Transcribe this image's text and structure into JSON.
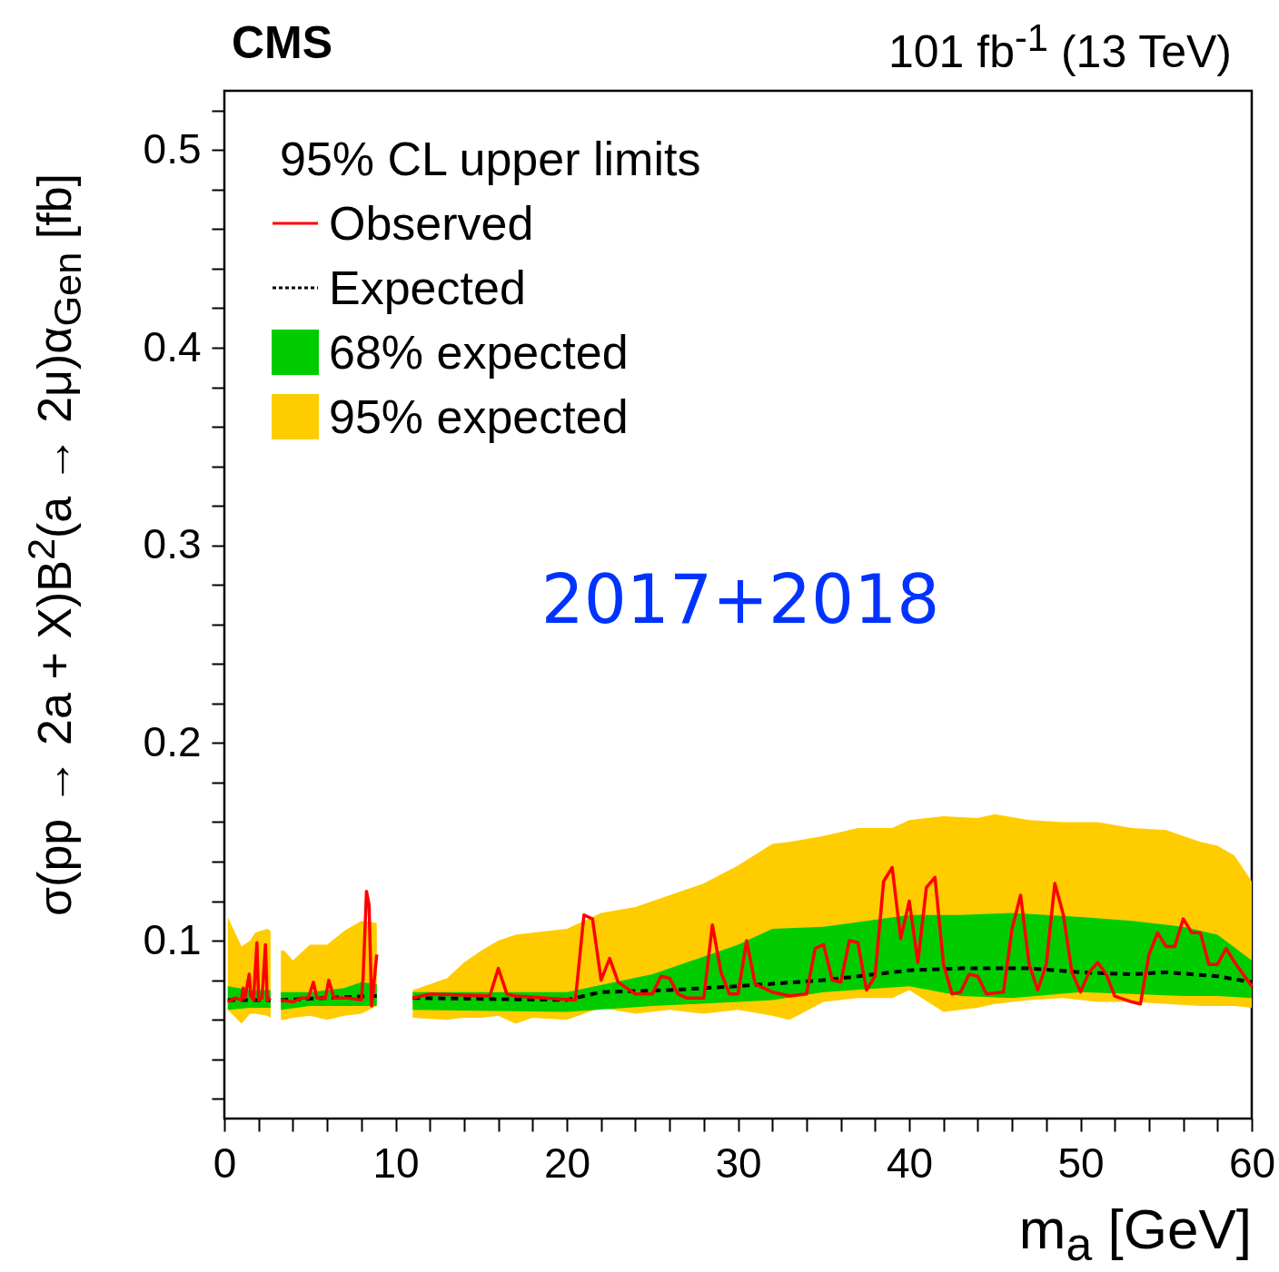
{
  "chart_data": {
    "type": "line",
    "title": "CMS",
    "subtitle": "101 fb$^{-1}$ (13 TeV)",
    "xlabel": "m$_{a}$ [GeV]",
    "ylabel": "σ(pp → 2a + X)B$^{2}$(a → 2μ)α$_{Gen}$ [fb]",
    "legend_title": "95% CL upper limits",
    "legend": "top left",
    "annotations": [
      "2017+2018"
    ],
    "xlim": [
      0,
      60
    ],
    "ylim": [
      0.01,
      0.53
    ],
    "xticks": [
      0,
      {
        "value": 2,
        "label": null
      },
      {
        "value": 4,
        "label": null
      },
      {
        "value": 6,
        "label": null
      },
      {
        "value": 8,
        "label": null
      },
      10,
      {
        "value": 12,
        "label": null
      },
      {
        "value": 14,
        "label": null
      },
      {
        "value": 16,
        "label": null
      },
      {
        "value": 18,
        "label": null
      },
      20,
      {
        "value": 22,
        "label": null
      },
      {
        "value": 24,
        "label": null
      },
      {
        "value": 26,
        "label": null
      },
      {
        "value": 28,
        "label": null
      },
      30,
      {
        "value": 32,
        "label": null
      },
      {
        "value": 34,
        "label": null
      },
      {
        "value": 36,
        "label": null
      },
      {
        "value": 38,
        "label": null
      },
      40,
      {
        "value": 42,
        "label": null
      },
      {
        "value": 44,
        "label": null
      },
      {
        "value": 46,
        "label": null
      },
      {
        "value": 48,
        "label": null
      },
      50,
      {
        "value": 52,
        "label": null
      },
      {
        "value": 54,
        "label": null
      },
      {
        "value": 56,
        "label": null
      },
      {
        "value": 58,
        "label": null
      },
      60
    ],
    "yticks": [
      {
        "value": 0.02,
        "label": null
      },
      {
        "value": 0.04,
        "label": null
      },
      {
        "value": 0.06,
        "label": null
      },
      {
        "value": 0.08,
        "label": null
      },
      0.1,
      {
        "value": 0.12,
        "label": null
      },
      {
        "value": 0.14,
        "label": null
      },
      {
        "value": 0.16,
        "label": null
      },
      {
        "value": 0.18,
        "label": null
      },
      0.2,
      {
        "value": 0.22,
        "label": null
      },
      {
        "value": 0.24,
        "label": null
      },
      {
        "value": 0.26,
        "label": null
      },
      {
        "value": 0.28,
        "label": null
      },
      0.3,
      {
        "value": 0.32,
        "label": null
      },
      {
        "value": 0.34,
        "label": null
      },
      {
        "value": 0.36,
        "label": null
      },
      {
        "value": 0.38,
        "label": null
      },
      0.4,
      {
        "value": 0.42,
        "label": null
      },
      {
        "value": 0.44,
        "label": null
      },
      {
        "value": 0.46,
        "label": null
      },
      {
        "value": 0.48,
        "label": null
      },
      0.5,
      {
        "value": 0.52,
        "label": null
      }
    ],
    "grid": false,
    "series": [
      {
        "name": "95% expected",
        "type": "area",
        "color": "#ffcc00",
        "x": [
          0.2,
          1.0,
          1.5,
          1.8,
          2.5,
          2.7,
          3.0,
          3.3,
          3.5,
          4,
          5,
          6,
          7,
          8,
          8.9,
          10,
          11,
          13,
          14,
          15,
          16,
          17,
          18,
          20,
          22,
          24,
          26,
          28,
          30,
          32,
          33,
          35,
          37,
          39,
          40,
          42,
          44,
          45,
          47,
          49,
          51,
          53,
          55,
          57,
          58,
          59,
          60
        ],
        "lower": [
          0.065,
          0.058,
          0.063,
          0.063,
          0.062,
          0.061,
          null,
          0.06,
          0.06,
          0.061,
          0.062,
          0.06,
          0.062,
          0.063,
          0.067,
          null,
          0.061,
          0.06,
          0.061,
          0.061,
          0.062,
          0.058,
          0.061,
          0.06,
          0.066,
          0.063,
          0.065,
          0.063,
          0.065,
          0.062,
          0.06,
          0.069,
          0.071,
          0.071,
          0.075,
          0.064,
          0.066,
          0.068,
          0.07,
          0.071,
          0.069,
          0.069,
          0.068,
          0.067,
          0.067,
          0.067,
          0.066
        ],
        "values": [
          null,
          null,
          null,
          null,
          null,
          null,
          null,
          null,
          null,
          null,
          null,
          null,
          null,
          null,
          null,
          null,
          null,
          null,
          null,
          null,
          null,
          null,
          null,
          null,
          null,
          null,
          null,
          null,
          null,
          null,
          null,
          null,
          null,
          null,
          null,
          null,
          null,
          null,
          null,
          null,
          null,
          null,
          null,
          null,
          null,
          null,
          null
        ],
        "upper": [
          0.112,
          0.097,
          0.1,
          0.104,
          0.106,
          0.105,
          null,
          0.095,
          0.095,
          0.09,
          0.098,
          0.098,
          0.105,
          0.11,
          0.109,
          null,
          0.075,
          0.081,
          0.089,
          0.095,
          0.1,
          0.103,
          0.104,
          0.106,
          0.114,
          0.117,
          0.123,
          0.129,
          0.138,
          0.149,
          0.15,
          0.153,
          0.157,
          0.157,
          0.161,
          0.163,
          0.162,
          0.164,
          0.161,
          0.16,
          0.16,
          0.157,
          0.156,
          0.15,
          0.148,
          0.143,
          0.13
        ]
      },
      {
        "name": "68% expected",
        "type": "area",
        "color": "#00cc00",
        "x": [
          0.2,
          1.5,
          2.7,
          3.0,
          3.3,
          5,
          6,
          7,
          8,
          8.9,
          10,
          11,
          20,
          25,
          30,
          32,
          35,
          40,
          43,
          46,
          50,
          53,
          56,
          58,
          60
        ],
        "lower": [
          0.065,
          0.066,
          0.066,
          null,
          0.065,
          0.067,
          0.067,
          0.067,
          0.067,
          0.067,
          null,
          0.065,
          0.064,
          0.067,
          0.069,
          0.07,
          0.074,
          0.077,
          0.072,
          0.071,
          0.074,
          0.073,
          0.072,
          0.072,
          0.071
        ],
        "values": [
          null,
          null,
          null,
          null,
          null,
          null,
          null,
          null,
          null,
          null,
          null,
          null,
          null,
          null,
          null,
          null,
          null,
          null,
          null,
          null,
          null,
          null,
          null,
          null,
          null
        ],
        "upper": [
          0.077,
          0.075,
          0.075,
          null,
          0.074,
          0.074,
          0.075,
          0.076,
          0.079,
          0.078,
          null,
          0.074,
          0.074,
          0.083,
          0.098,
          0.106,
          0.107,
          0.113,
          0.113,
          0.114,
          0.112,
          0.11,
          0.107,
          0.103,
          0.09
        ]
      },
      {
        "name": "Expected",
        "type": "line",
        "color": "#000000",
        "line_style": "dashed",
        "x": [
          0.2,
          2.7,
          3.0,
          3.3,
          6,
          8.5,
          8.9,
          10,
          11,
          20,
          22,
          26,
          30,
          35,
          40,
          43,
          47,
          50,
          53,
          55,
          58,
          60
        ],
        "values": [
          0.07,
          0.07,
          null,
          0.07,
          0.071,
          0.072,
          0.072,
          null,
          0.071,
          0.07,
          0.074,
          0.075,
          0.077,
          0.08,
          0.085,
          0.086,
          0.086,
          0.084,
          0.083,
          0.084,
          0.082,
          0.079
        ]
      },
      {
        "name": "Observed",
        "type": "line",
        "color": "#ff0000",
        "line_style": "solid",
        "x": [
          0.2,
          0.6,
          1.0,
          1.1,
          1.2,
          1.45,
          1.55,
          1.7,
          1.9,
          2.0,
          2.2,
          2.4,
          2.5,
          2.7,
          3.0,
          3.3,
          4,
          4.5,
          4.9,
          5.2,
          5.4,
          5.9,
          6.1,
          6.4,
          7.2,
          8,
          8.1,
          8.3,
          8.45,
          8.6,
          8.9,
          10,
          11,
          12,
          15.5,
          16,
          16.5,
          17,
          20.5,
          21,
          21.5,
          22,
          22.5,
          23,
          24,
          25,
          25.5,
          26,
          26.5,
          27,
          28,
          28.5,
          29,
          29.5,
          30,
          30.5,
          31,
          32,
          33,
          34,
          34.5,
          35,
          35.5,
          36,
          36.5,
          37,
          37.5,
          38,
          38.5,
          39,
          39.5,
          40,
          40.5,
          41,
          41.5,
          42,
          42.5,
          43,
          43.5,
          44,
          44.5,
          45.5,
          46,
          46.5,
          47,
          47.5,
          48,
          48.5,
          49,
          49.5,
          50,
          50.5,
          51,
          51.5,
          52,
          53,
          53.5,
          54,
          54.5,
          55,
          55.5,
          56,
          56.5,
          57,
          57.5,
          58,
          58.5,
          59,
          60
        ],
        "values": [
          0.069,
          0.071,
          0.07,
          0.076,
          0.071,
          0.083,
          0.072,
          0.07,
          0.099,
          0.07,
          0.071,
          0.098,
          0.07,
          0.071,
          null,
          0.07,
          0.069,
          0.071,
          0.071,
          0.079,
          0.071,
          0.071,
          0.08,
          0.071,
          0.071,
          0.07,
          0.081,
          0.125,
          0.118,
          0.067,
          0.093,
          null,
          0.071,
          0.073,
          0.072,
          0.086,
          0.073,
          0.072,
          0.07,
          0.113,
          0.111,
          0.08,
          0.091,
          0.079,
          0.073,
          0.073,
          0.082,
          0.081,
          0.073,
          0.071,
          0.071,
          0.108,
          0.084,
          0.073,
          0.073,
          0.1,
          0.078,
          0.074,
          0.072,
          0.073,
          0.096,
          0.098,
          0.08,
          0.079,
          0.1,
          0.099,
          0.075,
          0.082,
          0.13,
          0.137,
          0.101,
          0.12,
          0.089,
          0.127,
          0.132,
          0.088,
          0.073,
          0.074,
          0.083,
          0.082,
          0.073,
          0.074,
          0.106,
          0.123,
          0.088,
          0.075,
          0.088,
          0.129,
          0.113,
          0.084,
          0.074,
          0.084,
          0.089,
          0.083,
          0.072,
          0.069,
          0.068,
          0.093,
          0.104,
          0.097,
          0.097,
          0.111,
          0.104,
          0.104,
          0.088,
          0.088,
          0.096,
          0.089,
          0.077
        ]
      }
    ]
  }
}
